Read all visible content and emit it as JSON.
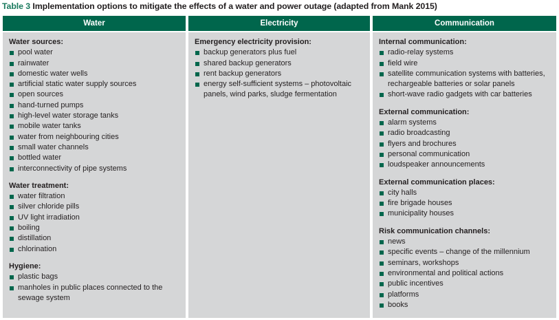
{
  "caption": {
    "label": "Table 3",
    "text": "Implementation options to mitigate the effects of a water and power outage (adapted from Mank 2015)"
  },
  "columns": [
    {
      "header": "Water",
      "sections": [
        {
          "title": "Water sources:",
          "items": [
            "pool water",
            "rainwater",
            "domestic water wells",
            "artificial static water supply sources",
            "open sources",
            "hand-turned pumps",
            "high-level water storage tanks",
            "mobile water tanks",
            "water from neighbouring cities",
            "small water channels",
            "bottled water",
            "interconnectivity of pipe systems"
          ]
        },
        {
          "title": "Water treatment:",
          "items": [
            "water filtration",
            "silver chloride pills",
            "UV light irradiation",
            "boiling",
            "distillation",
            "chlorination"
          ]
        },
        {
          "title": "Hygiene:",
          "items": [
            "plastic bags",
            "manholes in public places connected to the sewage system"
          ]
        }
      ]
    },
    {
      "header": "Electricity",
      "sections": [
        {
          "title": "Emergency electricity provision:",
          "items": [
            "backup generators plus fuel",
            "shared backup generators",
            "rent backup generators",
            "energy self-sufficient systems – photovoltaic panels, wind parks, sludge fermentation"
          ]
        }
      ]
    },
    {
      "header": "Communication",
      "sections": [
        {
          "title": "Internal communication:",
          "items": [
            "radio-relay systems",
            "field wire",
            "satellite communication systems with batteries, rechargeable batteries or solar panels",
            "short-wave radio gadgets with car batteries"
          ]
        },
        {
          "title": "External communication:",
          "items": [
            "alarm systems",
            "radio broadcasting",
            "flyers and brochures",
            "personal communication",
            "loudspeaker announcements"
          ]
        },
        {
          "title": "External communication places:",
          "items": [
            "city halls",
            "fire brigade houses",
            "municipality houses"
          ]
        },
        {
          "title": "Risk communication channels:",
          "items": [
            "news",
            "specific events – change of the millennium",
            "seminars, workshops",
            "environmental and political actions",
            "public incentives",
            "platforms",
            "books"
          ]
        }
      ]
    }
  ]
}
